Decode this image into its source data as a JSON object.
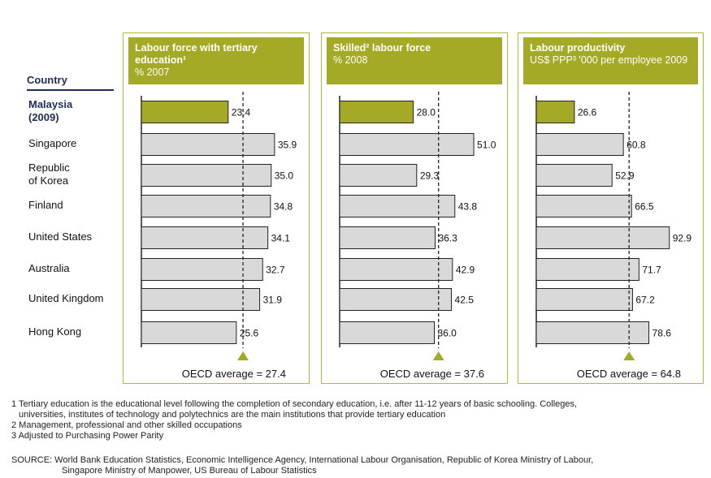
{
  "countries_header": "Country",
  "countries": [
    {
      "label": "Malaysia\n(2009)",
      "highlight": true
    },
    {
      "label": "Singapore",
      "highlight": false
    },
    {
      "label": "Republic\nof Korea",
      "highlight": false
    },
    {
      "label": "Finland",
      "highlight": false
    },
    {
      "label": "United States",
      "highlight": false
    },
    {
      "label": "Australia",
      "highlight": false
    },
    {
      "label": "United Kingdom",
      "highlight": false
    },
    {
      "label": "Hong Kong",
      "highlight": false
    }
  ],
  "colors": {
    "highlight": "#a4a926",
    "bar": "#d9d9d9",
    "border": "#b4b83a",
    "marker": "#a4a926",
    "header_text": "#1f2d5a"
  },
  "chart_data": [
    {
      "type": "bar",
      "title": "Labour force with tertiary education¹",
      "subtitle": "% 2007",
      "categories": [
        "Malaysia (2009)",
        "Singapore",
        "Republic of Korea",
        "Finland",
        "United States",
        "Australia",
        "United Kingdom",
        "Hong Kong"
      ],
      "values": [
        23.4,
        35.9,
        35.0,
        34.8,
        34.1,
        32.7,
        31.9,
        25.6
      ],
      "value_labels": [
        "23.4",
        "35.9",
        "35.0",
        "34.8",
        "34.1",
        "32.7",
        "31.9",
        "25.6"
      ],
      "average": 27.4,
      "average_label": "OECD average = 27.4",
      "xmax": 39
    },
    {
      "type": "bar",
      "title": "Skilled² labour force",
      "subtitle": "% 2008",
      "categories": [
        "Malaysia (2009)",
        "Singapore",
        "Republic of Korea",
        "Finland",
        "United States",
        "Australia",
        "United Kingdom",
        "Hong Kong"
      ],
      "values": [
        28.0,
        51.0,
        29.3,
        43.8,
        36.3,
        42.9,
        42.5,
        36.0
      ],
      "value_labels": [
        "28.0",
        "51.0",
        "29.3",
        "43.8",
        "36.3",
        "42.9",
        "42.5",
        "36.0"
      ],
      "average": 37.6,
      "average_label": "OECD average = 37.6",
      "xmax": 55
    },
    {
      "type": "bar",
      "title": "Labour productivity",
      "subtitle": "US$ PPP³ '000 per employee 2009",
      "categories": [
        "Malaysia (2009)",
        "Singapore",
        "Republic of Korea",
        "Finland",
        "United States",
        "Australia",
        "United Kingdom",
        "Hong Kong"
      ],
      "values": [
        26.6,
        60.8,
        52.9,
        66.5,
        92.9,
        71.7,
        67.2,
        78.6
      ],
      "value_labels": [
        "26.6",
        "60.8",
        "52.9",
        "66.5",
        "92.9",
        "71.7",
        "67.2",
        "78.6"
      ],
      "average": 64.8,
      "average_label": "OECD average = 64.8",
      "xmax": 101
    }
  ],
  "footnotes": [
    "1 Tertiary education is the educational level following the completion of secondary education, i.e. after 11-12 years of basic schooling. Colleges,",
    "universities, institutes of technology and polytechnics are the main institutions that provide tertiary education",
    "2  Management, professional and other skilled occupations",
    "3 Adjusted to Purchasing Power Parity"
  ],
  "source_line1": "SOURCE: World Bank Education Statistics, Economic Intelligence Agency, International Labour Organisation, Republic of Korea Ministry of Labour,",
  "source_line2": "Singapore Ministry of Manpower, US Bureau of Labour Statistics"
}
